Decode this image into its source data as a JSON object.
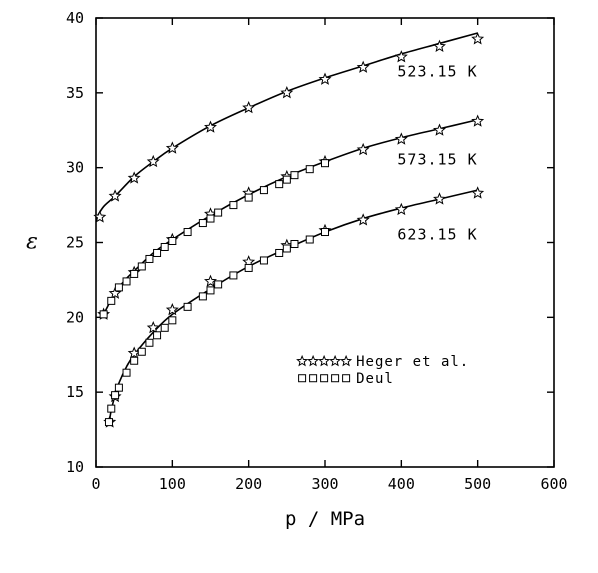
{
  "chart_data": {
    "type": "scatter",
    "xlabel": "p / MPa",
    "ylabel": "ε",
    "xlim": [
      0,
      600
    ],
    "ylim": [
      10,
      40
    ],
    "xticks": [
      0,
      100,
      200,
      300,
      400,
      500,
      600
    ],
    "yticks": [
      10,
      15,
      20,
      25,
      30,
      35,
      40
    ],
    "grid": false,
    "legend_position": "lower-right",
    "curve_labels": [
      {
        "text": "523.15 K",
        "anchor_p": 500,
        "anchor_eps": 36.1
      },
      {
        "text": "573.15 K",
        "anchor_p": 500,
        "anchor_eps": 30.2
      },
      {
        "text": "623.15 K",
        "anchor_p": 500,
        "anchor_eps": 25.2
      }
    ],
    "legend": [
      {
        "marker": "star",
        "label": "Heger et al."
      },
      {
        "marker": "square",
        "label": "Deul"
      }
    ],
    "curves": [
      {
        "temperature": "523.15 K",
        "x": [
          0,
          10,
          25,
          50,
          75,
          100,
          150,
          200,
          250,
          300,
          350,
          400,
          450,
          500
        ],
        "y": [
          26.6,
          27.4,
          28.1,
          29.4,
          30.4,
          31.3,
          32.8,
          34.0,
          35.1,
          36.0,
          36.8,
          37.6,
          38.3,
          39.0
        ]
      },
      {
        "temperature": "573.15 K",
        "x": [
          10,
          15,
          20,
          25,
          30,
          40,
          50,
          75,
          100,
          150,
          200,
          250,
          300,
          350,
          400,
          450,
          500
        ],
        "y": [
          20.2,
          20.7,
          21.2,
          21.6,
          22.0,
          22.6,
          23.1,
          24.3,
          25.2,
          26.8,
          28.2,
          29.4,
          30.4,
          31.3,
          32.0,
          32.6,
          33.2
        ]
      },
      {
        "temperature": "623.15 K",
        "x": [
          17,
          20,
          25,
          30,
          40,
          50,
          75,
          100,
          150,
          200,
          250,
          300,
          350,
          400,
          450,
          500
        ],
        "y": [
          12.9,
          13.8,
          14.8,
          15.6,
          16.7,
          17.5,
          19.0,
          20.2,
          21.9,
          23.4,
          24.6,
          25.7,
          26.6,
          27.3,
          27.9,
          28.5
        ]
      }
    ],
    "series": [
      {
        "name": "Heger et al.",
        "marker": "star",
        "x": [
          5,
          25,
          50,
          75,
          100,
          150,
          200,
          250,
          300,
          350,
          400,
          450,
          500,
          10,
          25,
          50,
          100,
          150,
          200,
          250,
          300,
          350,
          400,
          450,
          500,
          18,
          25,
          50,
          75,
          100,
          150,
          200,
          250,
          300,
          350,
          400,
          450,
          500
        ],
        "y": [
          26.7,
          28.1,
          29.3,
          30.4,
          31.3,
          32.7,
          34.0,
          35.0,
          35.9,
          36.7,
          37.4,
          38.1,
          38.6,
          20.2,
          21.6,
          23.0,
          25.2,
          26.9,
          28.3,
          29.4,
          30.4,
          31.2,
          31.9,
          32.5,
          33.1,
          13.0,
          14.7,
          17.6,
          19.3,
          20.5,
          22.4,
          23.7,
          24.8,
          25.8,
          26.5,
          27.2,
          27.9,
          28.3
        ]
      },
      {
        "name": "Deul",
        "marker": "square",
        "x": [
          10,
          20,
          30,
          40,
          50,
          60,
          70,
          80,
          90,
          100,
          120,
          140,
          150,
          160,
          180,
          200,
          220,
          240,
          250,
          260,
          280,
          300,
          17,
          20,
          25,
          30,
          40,
          50,
          60,
          70,
          80,
          90,
          100,
          120,
          140,
          150,
          160,
          180,
          200,
          220,
          240,
          250,
          260,
          280,
          300
        ],
        "y": [
          20.2,
          21.1,
          22.0,
          22.4,
          22.9,
          23.4,
          23.9,
          24.3,
          24.7,
          25.1,
          25.7,
          26.3,
          26.6,
          27.0,
          27.5,
          28.0,
          28.5,
          28.9,
          29.2,
          29.5,
          29.9,
          30.3,
          13.0,
          13.9,
          14.8,
          15.3,
          16.3,
          17.1,
          17.7,
          18.3,
          18.8,
          19.3,
          19.8,
          20.7,
          21.4,
          21.8,
          22.2,
          22.8,
          23.3,
          23.8,
          24.3,
          24.6,
          24.9,
          25.2,
          25.7
        ]
      }
    ]
  }
}
